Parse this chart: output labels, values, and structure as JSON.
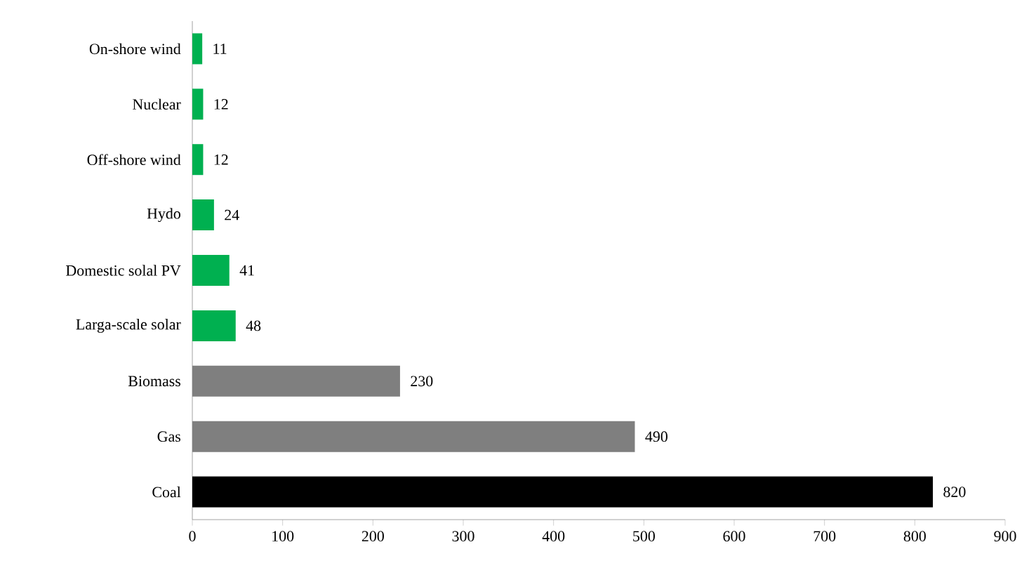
{
  "chart_data": {
    "type": "bar",
    "orientation": "horizontal",
    "categories": [
      "On-shore wind",
      "Nuclear",
      "Off-shore wind",
      "Hydo",
      "Domestic solal PV",
      "Larga-scale solar",
      "Biomass",
      "Gas",
      "Coal"
    ],
    "values": [
      11,
      12,
      12,
      24,
      41,
      48,
      230,
      490,
      820
    ],
    "colors": [
      "#00b050",
      "#00b050",
      "#00b050",
      "#00b050",
      "#00b050",
      "#00b050",
      "#7f7f7f",
      "#7f7f7f",
      "#000000"
    ],
    "xlim": [
      0,
      900
    ],
    "xticks": [
      0,
      100,
      200,
      300,
      400,
      500,
      600,
      700,
      800,
      900
    ],
    "data_labels": true
  }
}
